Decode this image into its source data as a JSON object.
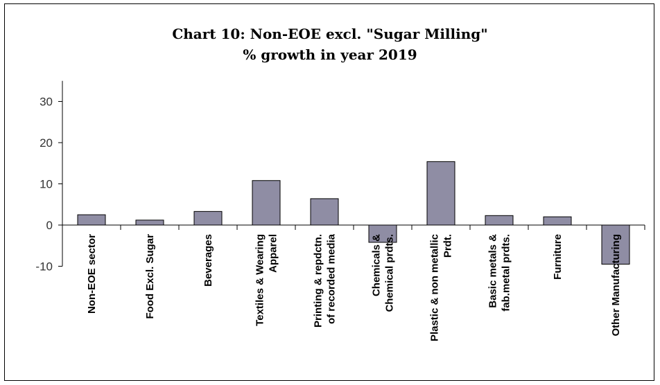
{
  "chart_data": {
    "type": "bar",
    "title_line1": "Chart 10: Non-EOE excl. \"Sugar Milling\"",
    "title_line2": "% growth in year 2019",
    "ylim": [
      -10,
      35
    ],
    "yticks": [
      30,
      20,
      10,
      0,
      -10
    ],
    "categories": [
      [
        "Non-EOE sector"
      ],
      [
        "Food Excl. Sugar"
      ],
      [
        "Beverages"
      ],
      [
        "Textiles & Wearing",
        "Apparel"
      ],
      [
        "Printing & repdctn.",
        "of recorded media"
      ],
      [
        "Chemicals &",
        "Chemical prdts."
      ],
      [
        "Plastic & non metallic",
        "Prdt."
      ],
      [
        "Basic metals &",
        "fab.metal prdts."
      ],
      [
        "Furniture"
      ],
      [
        "Other Manufacturing"
      ]
    ],
    "values": [
      2.5,
      1.2,
      3.3,
      10.8,
      6.4,
      -4.2,
      15.4,
      2.3,
      2.0,
      -9.5
    ],
    "bar_color": "#8f8da4",
    "grid": false
  }
}
